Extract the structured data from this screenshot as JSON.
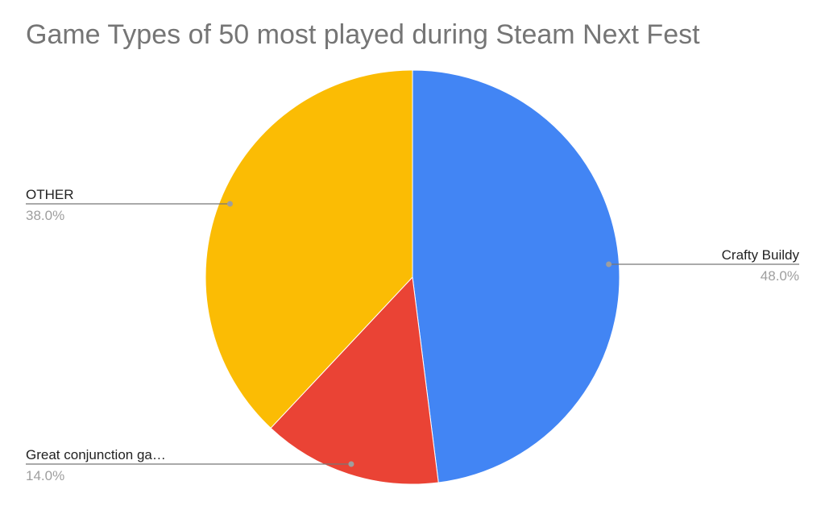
{
  "chart_data": {
    "type": "pie",
    "title": "Game Types of 50 most played during Steam Next Fest",
    "slices": [
      {
        "label": "Crafty Buildy",
        "value": 48.0,
        "percent_label": "48.0%",
        "color": "#4285f4"
      },
      {
        "label": "Great conjunction ga…",
        "value": 14.0,
        "percent_label": "14.0%",
        "color": "#ea4335"
      },
      {
        "label": "OTHER",
        "value": 38.0,
        "percent_label": "38.0%",
        "color": "#fbbc04"
      }
    ],
    "legend": "none",
    "label_style": "callout with name and percentage"
  }
}
